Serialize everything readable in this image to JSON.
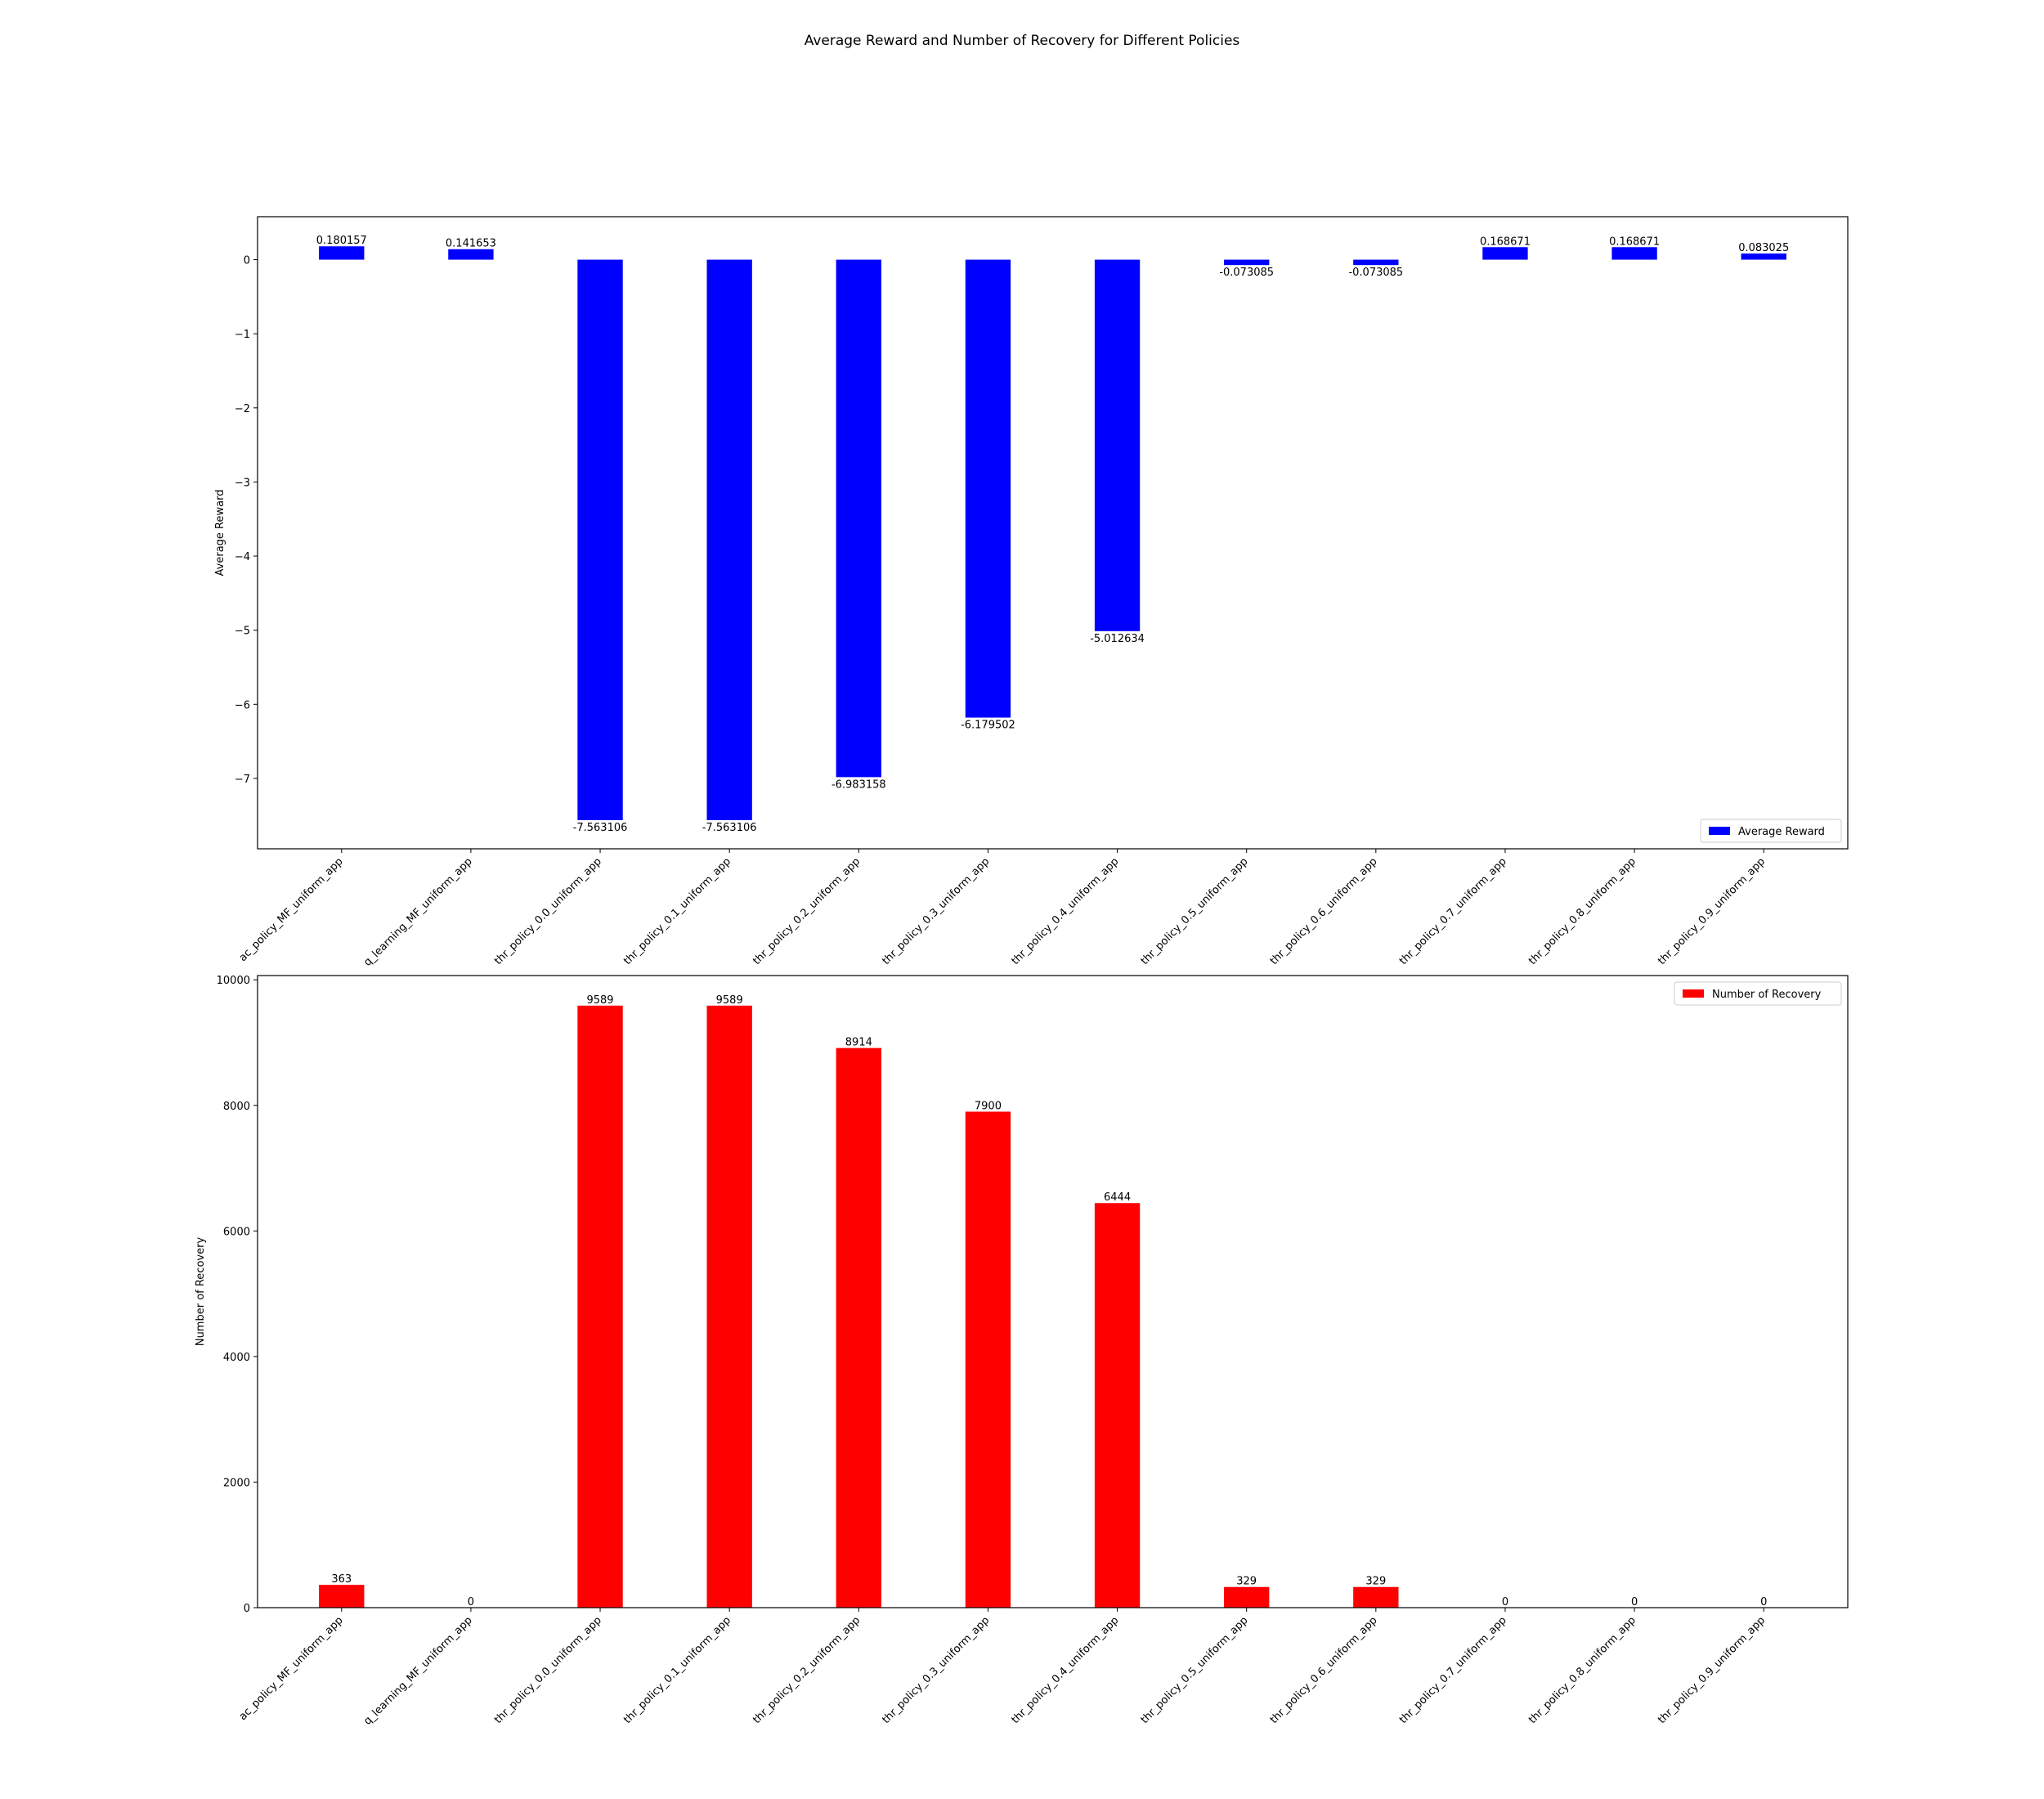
{
  "figure": {
    "title": "Average Reward and Number of Recovery for Different Policies"
  },
  "chart_data": [
    {
      "type": "bar",
      "categories": [
        "ac_policy_MF_uniform_app",
        "q_learning_MF_uniform_app",
        "thr_policy_0.0_uniform_app",
        "thr_policy_0.1_uniform_app",
        "thr_policy_0.2_uniform_app",
        "thr_policy_0.3_uniform_app",
        "thr_policy_0.4_uniform_app",
        "thr_policy_0.5_uniform_app",
        "thr_policy_0.6_uniform_app",
        "thr_policy_0.7_uniform_app",
        "thr_policy_0.8_uniform_app",
        "thr_policy_0.9_uniform_app"
      ],
      "series": [
        {
          "name": "Average Reward",
          "color": "#0000ff",
          "values": [
            0.180157,
            0.141653,
            -7.563106,
            -7.563106,
            -6.983158,
            -6.179502,
            -5.012634,
            -0.073085,
            -0.073085,
            0.168671,
            0.168671,
            0.083025
          ],
          "value_labels": [
            "0.180157",
            "0.141653",
            "-7.563106",
            "-7.563106",
            "-6.983158",
            "-6.179502",
            "-5.012634",
            "-0.073085",
            "-0.073085",
            "0.168671",
            "0.168671",
            "0.083025"
          ]
        }
      ],
      "xlabel": "",
      "ylabel": "Average Reward",
      "ylim": [
        -7.95,
        0.58
      ],
      "yticks": [
        0,
        -1,
        -2,
        -3,
        -4,
        -5,
        -6,
        -7
      ],
      "ytick_labels": [
        "0",
        "−1",
        "−2",
        "−3",
        "−4",
        "−5",
        "−6",
        "−7"
      ],
      "legend": {
        "position": "lower right",
        "entries": [
          "Average Reward"
        ]
      },
      "grid": false
    },
    {
      "type": "bar",
      "categories": [
        "ac_policy_MF_uniform_app",
        "q_learning_MF_uniform_app",
        "thr_policy_0.0_uniform_app",
        "thr_policy_0.1_uniform_app",
        "thr_policy_0.2_uniform_app",
        "thr_policy_0.3_uniform_app",
        "thr_policy_0.4_uniform_app",
        "thr_policy_0.5_uniform_app",
        "thr_policy_0.6_uniform_app",
        "thr_policy_0.7_uniform_app",
        "thr_policy_0.8_uniform_app",
        "thr_policy_0.9_uniform_app"
      ],
      "series": [
        {
          "name": "Number of Recovery",
          "color": "#ff0000",
          "values": [
            363,
            0,
            9589,
            9589,
            8914,
            7900,
            6444,
            329,
            329,
            0,
            0,
            0
          ],
          "value_labels": [
            "363",
            "0",
            "9589",
            "9589",
            "8914",
            "7900",
            "6444",
            "329",
            "329",
            "0",
            "0",
            "0"
          ]
        }
      ],
      "xlabel": "",
      "ylabel": "Number of Recovery",
      "ylim": [
        0,
        10068
      ],
      "yticks": [
        0,
        2000,
        4000,
        6000,
        8000,
        10000
      ],
      "ytick_labels": [
        "0",
        "2000",
        "4000",
        "6000",
        "8000",
        "10000"
      ],
      "legend": {
        "position": "upper right",
        "entries": [
          "Number of Recovery"
        ]
      },
      "grid": false
    }
  ]
}
